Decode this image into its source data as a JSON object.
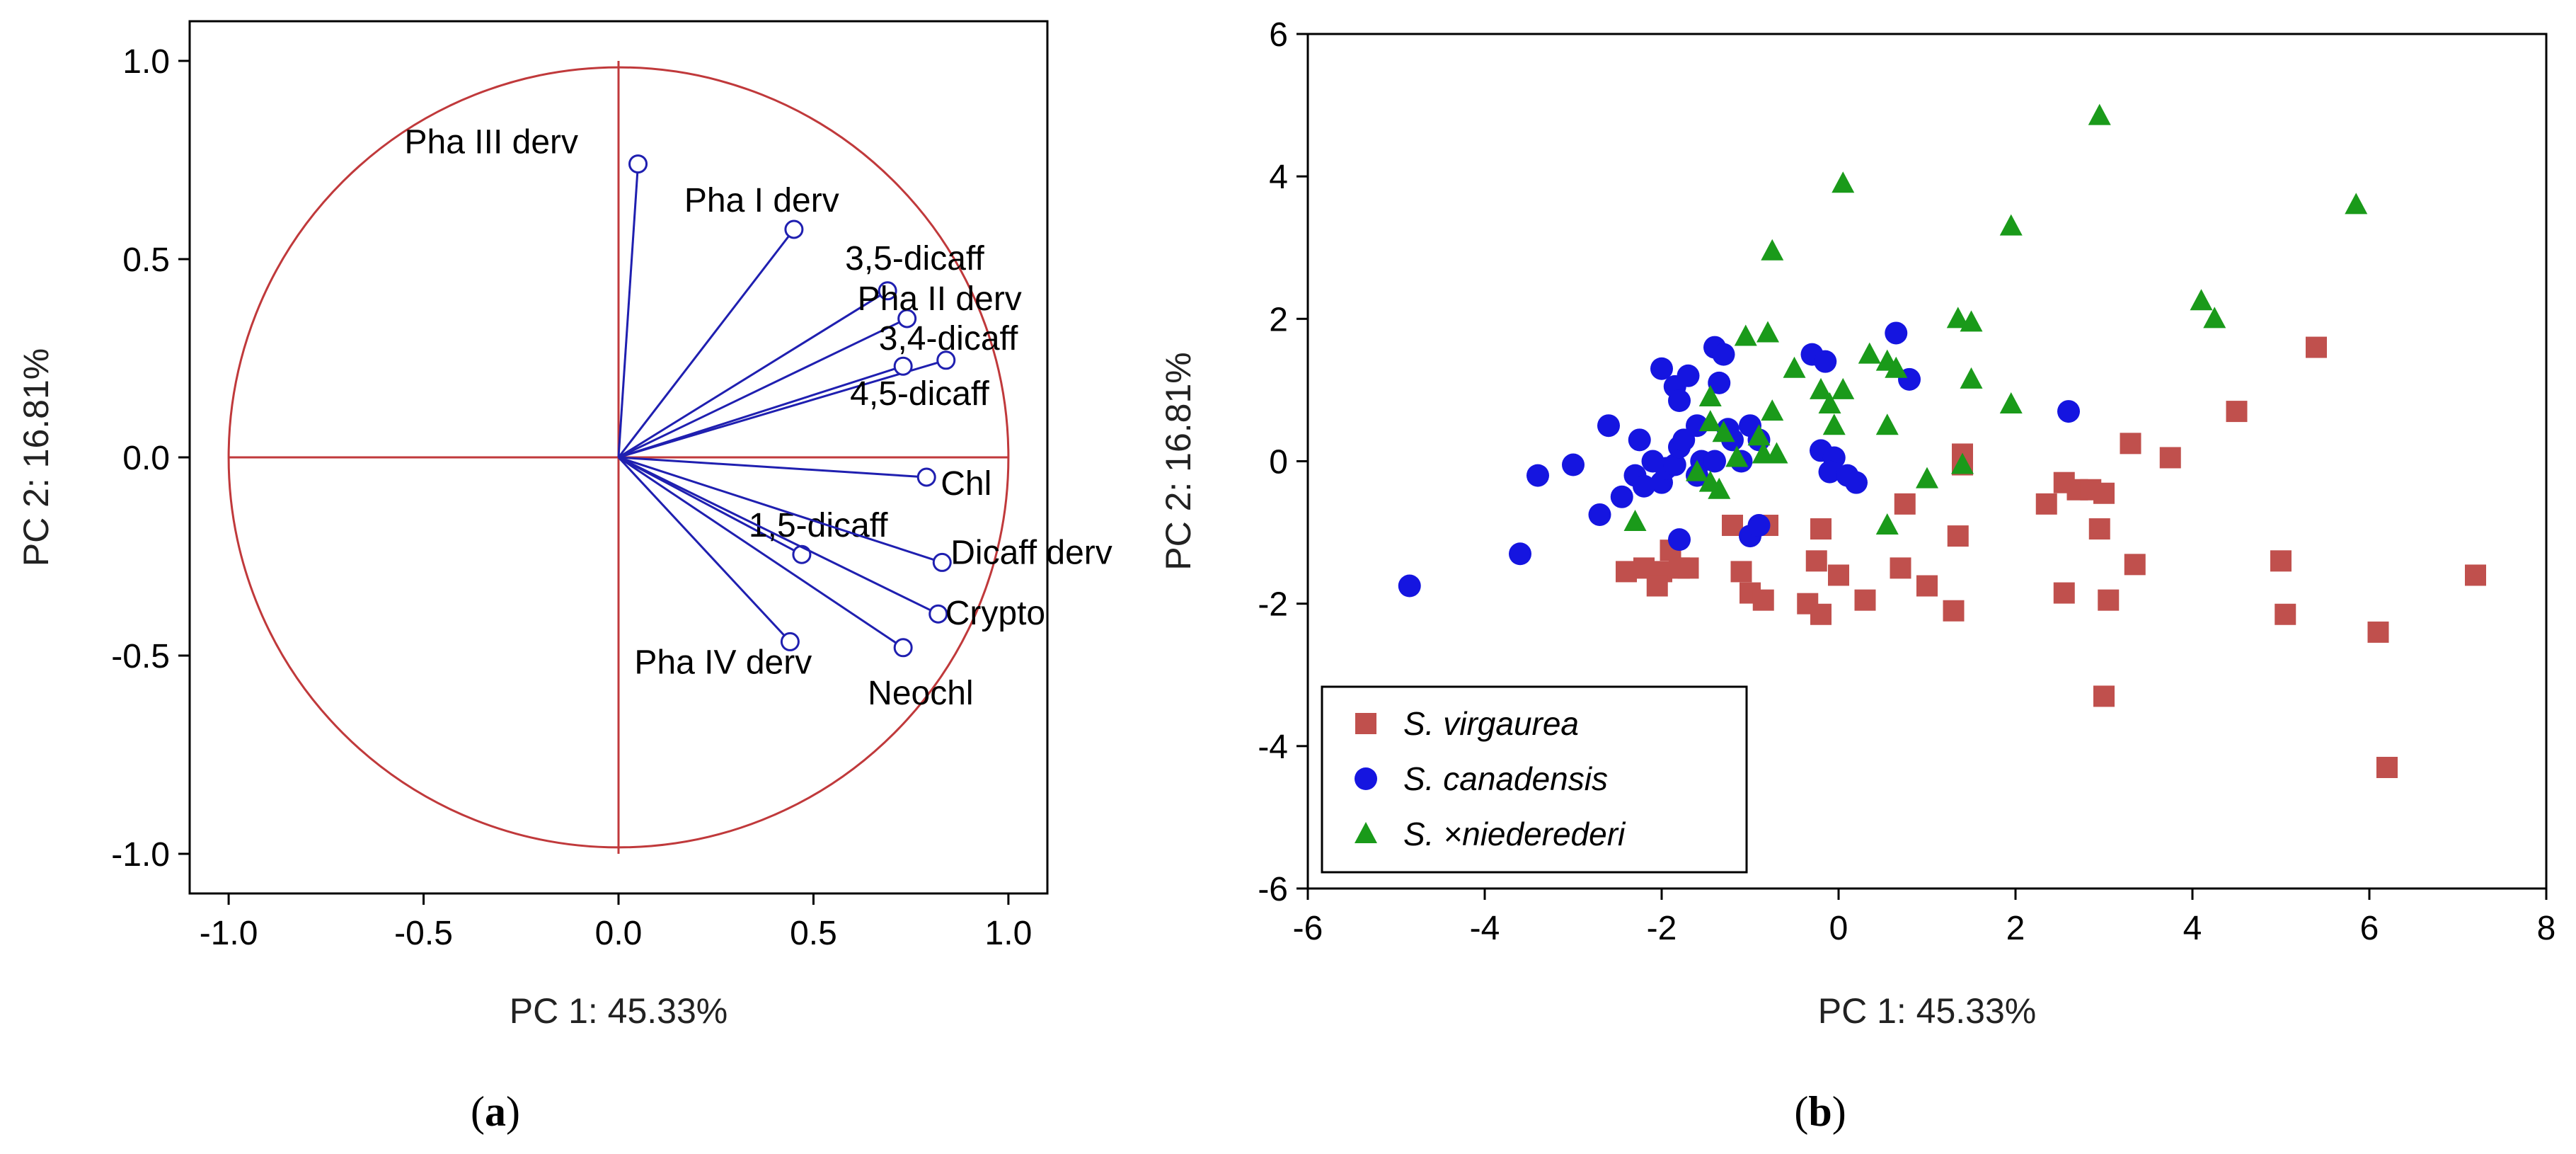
{
  "chart_data": [
    {
      "type": "scatter",
      "subtype": "pca-correlation-circle",
      "caption": {
        "open": "(",
        "letter": "a",
        "close": ")"
      },
      "xlabel": "PC 1: 45.33%",
      "ylabel": "PC 2: 16.81%",
      "xlim": [
        -1.1,
        1.1
      ],
      "ylim": [
        -1.1,
        1.1
      ],
      "xticks": [
        "-1.0",
        "-0.5",
        "0.0",
        "0.5",
        "1.0"
      ],
      "yticks": [
        "1.0",
        "0.5",
        "0.0",
        "-0.5",
        "-1.0"
      ],
      "grid": false,
      "colors": {
        "circle": "#c0393b",
        "vector": "#1f1fb0"
      },
      "vectors": [
        {
          "label": "Pha III derv",
          "x": 0.05,
          "y": 0.74
        },
        {
          "label": "Pha I derv",
          "x": 0.45,
          "y": 0.575
        },
        {
          "label": "3,5-dicaff",
          "x": 0.69,
          "y": 0.42
        },
        {
          "label": "Pha II derv",
          "x": 0.74,
          "y": 0.35
        },
        {
          "label": "3,4-dicaff",
          "x": 0.84,
          "y": 0.245
        },
        {
          "label": "4,5-dicaff",
          "x": 0.73,
          "y": 0.23
        },
        {
          "label": "Chl",
          "x": 0.79,
          "y": -0.05
        },
        {
          "label": "1,5-dicaff",
          "x": 0.47,
          "y": -0.245
        },
        {
          "label": "Dicaff derv",
          "x": 0.83,
          "y": -0.265
        },
        {
          "label": "Crypto",
          "x": 0.82,
          "y": -0.395
        },
        {
          "label": "Pha IV derv",
          "x": 0.44,
          "y": -0.465
        },
        {
          "label": "Neochl",
          "x": 0.73,
          "y": -0.48
        }
      ]
    },
    {
      "type": "scatter",
      "caption": {
        "open": "(",
        "letter": "b",
        "close": ")"
      },
      "xlabel": "PC 1: 45.33%",
      "ylabel": "PC 2: 16.81%",
      "xlim": [
        -6,
        8
      ],
      "ylim": [
        -6,
        6
      ],
      "xticks": [
        "-6",
        "-4",
        "-2",
        "0",
        "2",
        "4",
        "6",
        "8"
      ],
      "yticks": [
        "6",
        "4",
        "2",
        "0",
        "-2",
        "-4",
        "-6"
      ],
      "grid": false,
      "legend": "bottom-left",
      "series": [
        {
          "name": "S. virgaurea",
          "marker": "square",
          "color": "#c0504d",
          "points": [
            [
              5.4,
              1.6
            ],
            [
              4.5,
              0.7
            ],
            [
              3.3,
              0.25
            ],
            [
              3.75,
              0.05
            ],
            [
              1.4,
              0.1
            ],
            [
              1.4,
              -0.05
            ],
            [
              2.55,
              -0.3
            ],
            [
              2.7,
              -0.4
            ],
            [
              2.85,
              -0.4
            ],
            [
              3.0,
              -0.45
            ],
            [
              2.35,
              -0.6
            ],
            [
              2.95,
              -0.95
            ],
            [
              1.35,
              -1.05
            ],
            [
              -0.2,
              -0.95
            ],
            [
              -0.8,
              -0.9
            ],
            [
              0.75,
              -0.6
            ],
            [
              -1.2,
              -0.9
            ],
            [
              -2.4,
              -1.55
            ],
            [
              -2.2,
              -1.5
            ],
            [
              -2.0,
              -1.55
            ],
            [
              -1.8,
              -1.5
            ],
            [
              -1.9,
              -1.25
            ],
            [
              -1.7,
              -1.5
            ],
            [
              -2.05,
              -1.75
            ],
            [
              -1.1,
              -1.55
            ],
            [
              -1.0,
              -1.85
            ],
            [
              -0.85,
              -1.95
            ],
            [
              -0.25,
              -1.4
            ],
            [
              0.0,
              -1.6
            ],
            [
              -0.35,
              -2.0
            ],
            [
              -0.2,
              -2.15
            ],
            [
              0.3,
              -1.95
            ],
            [
              0.7,
              -1.5
            ],
            [
              1.0,
              -1.75
            ],
            [
              1.3,
              -2.1
            ],
            [
              2.55,
              -1.85
            ],
            [
              3.05,
              -1.95
            ],
            [
              3.35,
              -1.45
            ],
            [
              5.0,
              -1.4
            ],
            [
              5.05,
              -2.15
            ],
            [
              7.2,
              -1.6
            ],
            [
              6.1,
              -2.4
            ],
            [
              3.0,
              -3.3
            ],
            [
              6.2,
              -4.3
            ]
          ]
        },
        {
          "name": "S. canadensis",
          "marker": "circle",
          "color": "#1515e0",
          "points": [
            [
              -4.85,
              -1.75
            ],
            [
              -3.6,
              -1.3
            ],
            [
              -3.4,
              -0.2
            ],
            [
              -3.0,
              -0.05
            ],
            [
              -2.7,
              -0.75
            ],
            [
              -2.6,
              0.5
            ],
            [
              -2.45,
              -0.5
            ],
            [
              -2.3,
              -0.2
            ],
            [
              -2.25,
              0.3
            ],
            [
              -2.1,
              0.0
            ],
            [
              -2.0,
              -0.3
            ],
            [
              -1.95,
              -0.1
            ],
            [
              -1.85,
              -0.05
            ],
            [
              -1.8,
              0.2
            ],
            [
              -1.75,
              0.3
            ],
            [
              -2.0,
              1.3
            ],
            [
              -1.85,
              1.05
            ],
            [
              -1.7,
              1.2
            ],
            [
              -1.8,
              0.85
            ],
            [
              -1.6,
              0.5
            ],
            [
              -1.55,
              0.0
            ],
            [
              -1.4,
              1.6
            ],
            [
              -1.3,
              1.5
            ],
            [
              -1.35,
              1.1
            ],
            [
              -1.25,
              0.45
            ],
            [
              -1.2,
              0.3
            ],
            [
              -1.4,
              0.0
            ],
            [
              -1.1,
              0.0
            ],
            [
              -1.0,
              0.5
            ],
            [
              -0.9,
              0.3
            ],
            [
              -1.0,
              -1.05
            ],
            [
              -0.9,
              -0.9
            ],
            [
              -1.8,
              -1.1
            ],
            [
              -1.6,
              -0.2
            ],
            [
              -2.2,
              -0.35
            ],
            [
              -0.3,
              1.5
            ],
            [
              -0.15,
              1.4
            ],
            [
              -0.2,
              0.15
            ],
            [
              -0.05,
              0.05
            ],
            [
              -0.1,
              -0.15
            ],
            [
              0.1,
              -0.2
            ],
            [
              0.2,
              -0.3
            ],
            [
              0.65,
              1.8
            ],
            [
              0.8,
              1.15
            ],
            [
              2.6,
              0.7
            ]
          ]
        },
        {
          "name": "S. ×niederederi",
          "marker": "triangle",
          "color": "#1a9a1a",
          "points": [
            [
              2.95,
              4.85
            ],
            [
              0.05,
              3.9
            ],
            [
              5.85,
              3.6
            ],
            [
              1.95,
              3.3
            ],
            [
              -0.75,
              2.95
            ],
            [
              4.1,
              2.25
            ],
            [
              4.25,
              2.0
            ],
            [
              1.35,
              2.0
            ],
            [
              1.5,
              1.95
            ],
            [
              -1.05,
              1.75
            ],
            [
              -0.8,
              1.8
            ],
            [
              0.35,
              1.5
            ],
            [
              0.55,
              1.4
            ],
            [
              0.65,
              1.3
            ],
            [
              -0.5,
              1.3
            ],
            [
              1.5,
              1.15
            ],
            [
              1.95,
              0.8
            ],
            [
              -0.2,
              1.0
            ],
            [
              0.05,
              1.0
            ],
            [
              -1.45,
              0.9
            ],
            [
              -0.1,
              0.8
            ],
            [
              -0.75,
              0.7
            ],
            [
              -1.45,
              0.55
            ],
            [
              -0.05,
              0.5
            ],
            [
              0.55,
              0.5
            ],
            [
              -1.3,
              0.4
            ],
            [
              -0.9,
              0.35
            ],
            [
              -1.15,
              0.05
            ],
            [
              -0.85,
              0.1
            ],
            [
              -0.7,
              0.1
            ],
            [
              -1.6,
              -0.15
            ],
            [
              -1.45,
              -0.3
            ],
            [
              -1.35,
              -0.4
            ],
            [
              1.0,
              -0.25
            ],
            [
              1.4,
              -0.05
            ],
            [
              0.55,
              -0.9
            ],
            [
              -2.3,
              -0.85
            ]
          ]
        }
      ]
    }
  ]
}
